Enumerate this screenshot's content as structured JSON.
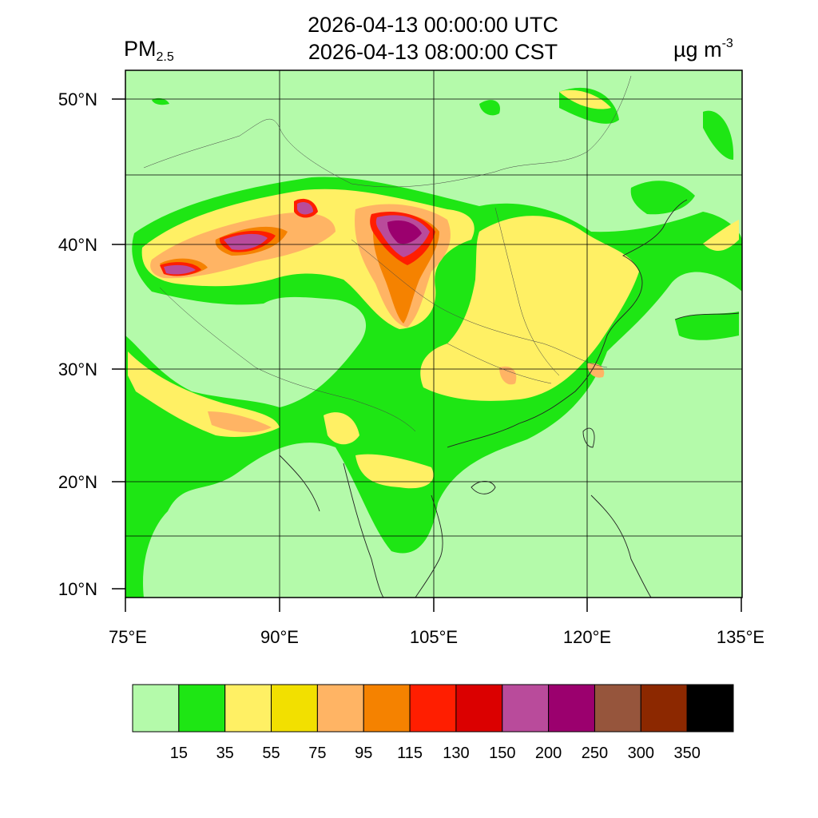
{
  "header": {
    "variable_main": "PM",
    "variable_sub": "2.5",
    "time_utc": "2026-04-13 00:00:00 UTC",
    "time_cst": "2026-04-13 08:00:00 CST",
    "unit_main": "µg m",
    "unit_sup": "-3"
  },
  "map": {
    "lat_labels": [
      "50°N",
      "40°N",
      "30°N",
      "20°N",
      "10°N"
    ],
    "lon_labels": [
      "75°E",
      "90°E",
      "105°E",
      "120°E",
      "135°E"
    ],
    "background_color": "#b4faaa"
  },
  "colorbar": {
    "colors": [
      "#b4faaa",
      "#1ee614",
      "#fff064",
      "#f2e000",
      "#ffb464",
      "#f58200",
      "#ff1e00",
      "#db0000",
      "#b94b9b",
      "#9b006e",
      "#96553c",
      "#8c2800",
      "#000000"
    ],
    "labels": [
      "15",
      "35",
      "55",
      "75",
      "95",
      "115",
      "130",
      "150",
      "200",
      "250",
      "300",
      "350"
    ]
  }
}
